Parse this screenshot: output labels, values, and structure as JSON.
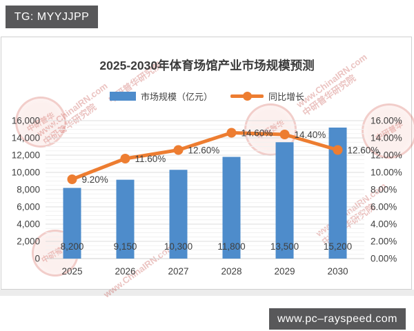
{
  "badges": {
    "top_left": "TG: MYYJJPP",
    "bottom_right": "www.pc–rayspeed.com",
    "background": "#58585a",
    "text_color": "#ffffff"
  },
  "chart_data": {
    "type": "combo",
    "title": "2025-2030年体育场馆产业市场规模预测",
    "categories": [
      "2025",
      "2026",
      "2027",
      "2028",
      "2029",
      "2030"
    ],
    "series": [
      {
        "name": "市场规模（亿元）",
        "type": "bar",
        "axis": "left",
        "color": "#4E8CCB",
        "values": [
          8200,
          9150,
          10300,
          11800,
          13500,
          15200
        ],
        "labels": [
          "8,200",
          "9,150",
          "10,300",
          "11,800",
          "13,500",
          "15,200"
        ]
      },
      {
        "name": "同比增长",
        "type": "line",
        "axis": "right",
        "color": "#ED7D31",
        "values": [
          9.2,
          11.6,
          12.6,
          14.6,
          14.4,
          12.6
        ],
        "labels": [
          "9.20%",
          "11.60%",
          "12.60%",
          "14.60%",
          "14.40%",
          "12.60%"
        ]
      }
    ],
    "left_axis": {
      "min": 0,
      "max": 16000,
      "step": 2000,
      "ticks_top_to_bottom": [
        "16,000",
        "14,000",
        "12,000",
        "10,000",
        "8,000",
        "6,000",
        "4,000",
        "2,000",
        "0"
      ]
    },
    "right_axis": {
      "min": 0,
      "max": 16,
      "step": 2,
      "ticks_top_to_bottom": [
        "16.00%",
        "14.00%",
        "12.00%",
        "10.00%",
        "8.00%",
        "6.00%",
        "4.00%",
        "2.00%",
        "0.00%"
      ]
    },
    "grid": true,
    "legend_position": "top"
  },
  "watermark": {
    "line1": "www.ChinaIRN.com",
    "line2": "中研普华研究院",
    "stamp_text": "中研普华",
    "color": "#c5544a"
  }
}
